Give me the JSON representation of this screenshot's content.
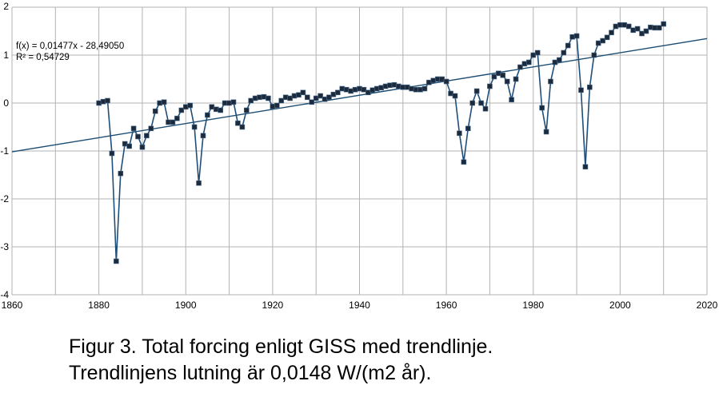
{
  "chart_data": {
    "type": "scatter",
    "xlim": [
      1860,
      2020
    ],
    "ylim": [
      -4,
      2
    ],
    "x_ticks": [
      "1860",
      "1880",
      "1900",
      "1920",
      "1940",
      "1960",
      "1980",
      "2000",
      "2020"
    ],
    "y_ticks": [
      "2",
      "1",
      "0",
      "-1",
      "-2",
      "-3",
      "-4"
    ],
    "grid": true,
    "trendline_label": "f(x) = 0,01477x - 28,49050",
    "r2_label": "R² = 0,54729",
    "trendline": {
      "slope": 0.01477,
      "intercept": -28.4905
    },
    "series": [
      {
        "color": "#1f4e79",
        "marker_color": "#1c2a3c",
        "x": [
          1880,
          1881,
          1882,
          1883,
          1884,
          1885,
          1886,
          1887,
          1888,
          1889,
          1890,
          1891,
          1892,
          1893,
          1894,
          1895,
          1896,
          1897,
          1898,
          1899,
          1900,
          1901,
          1902,
          1903,
          1904,
          1905,
          1906,
          1907,
          1908,
          1909,
          1910,
          1911,
          1912,
          1913,
          1914,
          1915,
          1916,
          1917,
          1918,
          1919,
          1920,
          1921,
          1922,
          1923,
          1924,
          1925,
          1926,
          1927,
          1928,
          1929,
          1930,
          1931,
          1932,
          1933,
          1934,
          1935,
          1936,
          1937,
          1938,
          1939,
          1940,
          1941,
          1942,
          1943,
          1944,
          1945,
          1946,
          1947,
          1948,
          1949,
          1950,
          1951,
          1952,
          1953,
          1954,
          1955,
          1956,
          1957,
          1958,
          1959,
          1960,
          1961,
          1962,
          1963,
          1964,
          1965,
          1966,
          1967,
          1968,
          1969,
          1970,
          1971,
          1972,
          1973,
          1974,
          1975,
          1976,
          1977,
          1978,
          1979,
          1980,
          1981,
          1982,
          1983,
          1984,
          1985,
          1986,
          1987,
          1988,
          1989,
          1990,
          1991,
          1992,
          1993,
          1994,
          1995,
          1996,
          1997,
          1998,
          1999,
          2000,
          2001,
          2002,
          2003,
          2004,
          2005,
          2006,
          2007,
          2008,
          2009,
          2010
        ],
        "y": [
          0.0,
          0.03,
          0.05,
          -1.05,
          -3.3,
          -1.47,
          -0.85,
          -0.9,
          -0.53,
          -0.7,
          -0.92,
          -0.68,
          -0.53,
          -0.17,
          0.0,
          0.02,
          -0.4,
          -0.4,
          -0.32,
          -0.15,
          -0.08,
          -0.05,
          -0.5,
          -1.67,
          -0.68,
          -0.25,
          -0.08,
          -0.13,
          -0.15,
          0.0,
          0.0,
          0.02,
          -0.42,
          -0.5,
          -0.15,
          0.05,
          0.1,
          0.12,
          0.13,
          0.1,
          -0.07,
          -0.05,
          0.05,
          0.12,
          0.1,
          0.15,
          0.17,
          0.22,
          0.12,
          0.02,
          0.1,
          0.15,
          0.08,
          0.12,
          0.18,
          0.22,
          0.3,
          0.28,
          0.25,
          0.28,
          0.3,
          0.28,
          0.22,
          0.27,
          0.3,
          0.32,
          0.35,
          0.37,
          0.38,
          0.35,
          0.33,
          0.33,
          0.3,
          0.28,
          0.28,
          0.3,
          0.43,
          0.47,
          0.5,
          0.5,
          0.45,
          0.2,
          0.15,
          -0.63,
          -1.23,
          -0.53,
          0.0,
          0.25,
          0.0,
          -0.12,
          0.35,
          0.55,
          0.62,
          0.58,
          0.45,
          0.07,
          0.5,
          0.75,
          0.82,
          0.85,
          1.0,
          1.05,
          -0.1,
          -0.6,
          0.45,
          0.85,
          0.9,
          1.05,
          1.2,
          1.38,
          1.4,
          0.27,
          -1.33,
          0.33,
          1.0,
          1.25,
          1.3,
          1.37,
          1.47,
          1.6,
          1.63,
          1.63,
          1.6,
          1.52,
          1.55,
          1.45,
          1.5,
          1.58,
          1.57,
          1.57,
          1.65
        ]
      }
    ]
  },
  "caption": {
    "line1": "Figur 3. Total forcing enligt GISS med trendlinje.",
    "line2": "Trendlinjens lutning är 0,0148 W/(m2 år)."
  }
}
